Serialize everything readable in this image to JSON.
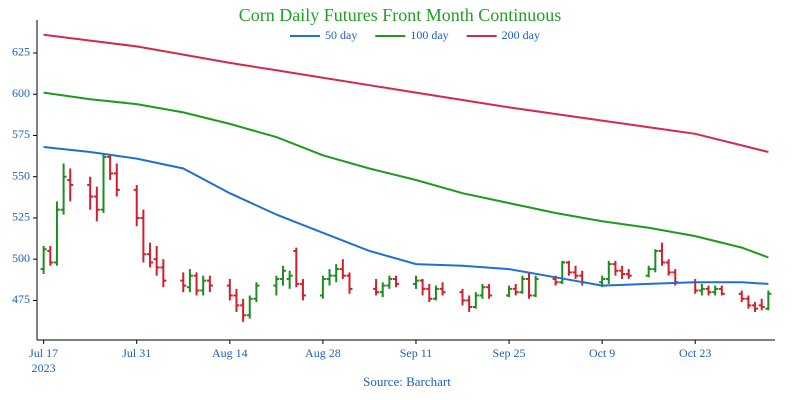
{
  "chart_data": {
    "type": "ohlc",
    "title": "Corn Daily Futures Front Month Continuous",
    "source": "Source: Barchart",
    "up_color": "#1e8c1e",
    "down_color": "#d0202e",
    "x": [
      "2023-07-17",
      "2023-07-18",
      "2023-07-19",
      "2023-07-20",
      "2023-07-21",
      "2023-07-24",
      "2023-07-25",
      "2023-07-26",
      "2023-07-27",
      "2023-07-28",
      "2023-07-31",
      "2023-08-01",
      "2023-08-02",
      "2023-08-03",
      "2023-08-04",
      "2023-08-07",
      "2023-08-08",
      "2023-08-09",
      "2023-08-10",
      "2023-08-11",
      "2023-08-14",
      "2023-08-15",
      "2023-08-16",
      "2023-08-17",
      "2023-08-18",
      "2023-08-21",
      "2023-08-22",
      "2023-08-23",
      "2023-08-24",
      "2023-08-25",
      "2023-08-28",
      "2023-08-29",
      "2023-08-30",
      "2023-08-31",
      "2023-09-01",
      "2023-09-05",
      "2023-09-06",
      "2023-09-07",
      "2023-09-08",
      "2023-09-11",
      "2023-09-12",
      "2023-09-13",
      "2023-09-14",
      "2023-09-15",
      "2023-09-18",
      "2023-09-19",
      "2023-09-20",
      "2023-09-21",
      "2023-09-22",
      "2023-09-25",
      "2023-09-26",
      "2023-09-27",
      "2023-09-28",
      "2023-09-29",
      "2023-10-02",
      "2023-10-03",
      "2023-10-04",
      "2023-10-05",
      "2023-10-06",
      "2023-10-09",
      "2023-10-10",
      "2023-10-11",
      "2023-10-12",
      "2023-10-13",
      "2023-10-16",
      "2023-10-17",
      "2023-10-18",
      "2023-10-19",
      "2023-10-20",
      "2023-10-23",
      "2023-10-24",
      "2023-10-25",
      "2023-10-26",
      "2023-10-27",
      "2023-10-30",
      "2023-10-31",
      "2023-11-01",
      "2023-11-02",
      "2023-11-03"
    ],
    "open": [
      494,
      505,
      498,
      530,
      548,
      545,
      538,
      530,
      562,
      552,
      542,
      525,
      503,
      500,
      495,
      487,
      483,
      490,
      481,
      487,
      484,
      478,
      472,
      466,
      476,
      484,
      488,
      488,
      505,
      485,
      478,
      488,
      490,
      494,
      490,
      482,
      480,
      484,
      488,
      485,
      487,
      482,
      476,
      482,
      480,
      475,
      471,
      478,
      483,
      478,
      482,
      480,
      488,
      478,
      488,
      486,
      498,
      492,
      490,
      486,
      488,
      497,
      493,
      491,
      490,
      494,
      505,
      498,
      492,
      486,
      481,
      482,
      480,
      482,
      479,
      476,
      472,
      472,
      470
    ],
    "high": [
      508,
      508,
      535,
      558,
      555,
      550,
      544,
      564,
      563,
      558,
      545,
      530,
      510,
      508,
      500,
      492,
      494,
      492,
      490,
      490,
      488,
      482,
      476,
      478,
      486,
      490,
      496,
      493,
      507,
      488,
      490,
      494,
      497,
      500,
      492,
      488,
      486,
      490,
      490,
      490,
      488,
      485,
      484,
      486,
      482,
      478,
      480,
      485,
      485,
      484,
      485,
      490,
      492,
      490,
      490,
      499,
      499,
      496,
      493,
      490,
      499,
      499,
      496,
      494,
      496,
      506,
      510,
      500,
      494,
      488,
      485,
      484,
      484,
      484,
      481,
      478,
      474,
      476,
      481
    ],
    "low": [
      491,
      496,
      496,
      527,
      535,
      530,
      523,
      528,
      548,
      538,
      520,
      498,
      495,
      490,
      483,
      480,
      480,
      478,
      478,
      480,
      475,
      468,
      462,
      464,
      474,
      478,
      484,
      482,
      483,
      475,
      476,
      484,
      486,
      488,
      479,
      478,
      477,
      482,
      483,
      482,
      478,
      474,
      475,
      478,
      472,
      468,
      470,
      476,
      476,
      477,
      478,
      479,
      476,
      477,
      484,
      485,
      490,
      488,
      484,
      483,
      485,
      490,
      488,
      488,
      489,
      492,
      496,
      490,
      484,
      479,
      478,
      478,
      478,
      478,
      474,
      470,
      468,
      469,
      469
    ],
    "close": [
      506,
      498,
      530,
      550,
      545,
      538,
      530,
      562,
      552,
      542,
      525,
      503,
      498,
      495,
      487,
      484,
      490,
      481,
      487,
      484,
      478,
      472,
      466,
      476,
      484,
      488,
      493,
      490,
      485,
      478,
      488,
      490,
      494,
      490,
      482,
      480,
      484,
      488,
      485,
      487,
      482,
      476,
      482,
      480,
      475,
      471,
      478,
      483,
      478,
      482,
      480,
      488,
      478,
      488,
      486,
      498,
      492,
      490,
      486,
      488,
      497,
      493,
      491,
      490,
      494,
      505,
      498,
      492,
      486,
      481,
      482,
      480,
      482,
      479,
      476,
      472,
      470,
      471,
      479
    ],
    "series": [
      {
        "name": "50 day",
        "color": "#1f6fd6",
        "x": [
          "2023-07-17",
          "2023-07-24",
          "2023-07-31",
          "2023-08-07",
          "2023-08-14",
          "2023-08-21",
          "2023-08-28",
          "2023-09-04",
          "2023-09-11",
          "2023-09-18",
          "2023-09-25",
          "2023-10-02",
          "2023-10-09",
          "2023-10-16",
          "2023-10-23",
          "2023-10-30",
          "2023-11-03"
        ],
        "values": [
          568,
          565,
          561,
          555,
          540,
          527,
          516,
          505,
          497,
          496,
          494,
          489,
          484,
          485,
          486,
          486,
          485
        ]
      },
      {
        "name": "100 day",
        "color": "#1e9a1e",
        "x": [
          "2023-07-17",
          "2023-07-24",
          "2023-07-31",
          "2023-08-07",
          "2023-08-14",
          "2023-08-21",
          "2023-08-28",
          "2023-09-04",
          "2023-09-11",
          "2023-09-18",
          "2023-09-25",
          "2023-10-02",
          "2023-10-09",
          "2023-10-16",
          "2023-10-23",
          "2023-10-30",
          "2023-11-03"
        ],
        "values": [
          601,
          597,
          594,
          589,
          582,
          574,
          563,
          555,
          548,
          540,
          534,
          528,
          523,
          519,
          514,
          507,
          501
        ]
      },
      {
        "name": "200 day",
        "color": "#d42a4a",
        "x": [
          "2023-07-17",
          "2023-07-24",
          "2023-07-31",
          "2023-08-07",
          "2023-08-14",
          "2023-08-21",
          "2023-08-28",
          "2023-09-04",
          "2023-09-11",
          "2023-09-18",
          "2023-09-25",
          "2023-10-02",
          "2023-10-09",
          "2023-10-16",
          "2023-10-23",
          "2023-10-30",
          "2023-11-03"
        ],
        "values": [
          636,
          632.5,
          629,
          624,
          619,
          614.5,
          610,
          605.5,
          601,
          596.5,
          592,
          588,
          584,
          580,
          576,
          569,
          565
        ]
      }
    ],
    "xlim": [
      "2023-07-16",
      "2023-11-04"
    ],
    "xticks": [
      {
        "value": "2023-07-17",
        "label": "Jul 17\n2023"
      },
      {
        "value": "2023-07-31",
        "label": "Jul 31"
      },
      {
        "value": "2023-08-14",
        "label": "Aug 14"
      },
      {
        "value": "2023-08-28",
        "label": "Aug 28"
      },
      {
        "value": "2023-09-11",
        "label": "Sep 11"
      },
      {
        "value": "2023-09-25",
        "label": "Sep 25"
      },
      {
        "value": "2023-10-09",
        "label": "Oct 9"
      },
      {
        "value": "2023-10-23",
        "label": "Oct 23"
      }
    ],
    "ylim": [
      451,
      645
    ],
    "yticks": [
      475,
      500,
      525,
      550,
      575,
      600,
      625
    ],
    "grid": false,
    "legend": "top"
  }
}
